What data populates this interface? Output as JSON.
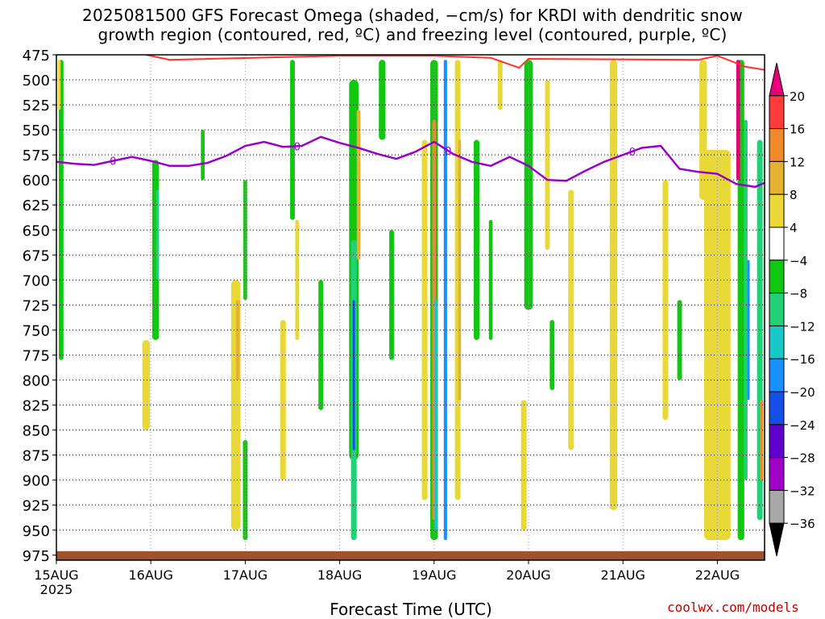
{
  "chart_data": {
    "type": "heatmap",
    "title_line1": "2025081500 GFS Forecast Omega (shaded, −cm/s) for KRDI with dendritic snow",
    "title_line2": "growth region (contoured, red, ºC) and freezing level (contoured, purple, ºC)",
    "xlabel": "Forecast Time (UTC)",
    "ylabel": "",
    "y_ticks": [
      475,
      500,
      525,
      550,
      575,
      600,
      625,
      650,
      675,
      700,
      725,
      750,
      775,
      800,
      825,
      850,
      875,
      900,
      925,
      950,
      975
    ],
    "ylim": [
      475,
      980
    ],
    "x_ticks": [
      "15AUG",
      "16AUG",
      "17AUG",
      "18AUG",
      "19AUG",
      "20AUG",
      "21AUG",
      "22AUG"
    ],
    "x_first_sub": "2025",
    "xlim_days": [
      0,
      7.5
    ],
    "colorbar": {
      "levels": [
        "20",
        "16",
        "12",
        "8",
        "4",
        "−4",
        "−8",
        "−12",
        "−16",
        "−20",
        "−24",
        "−28",
        "−32",
        "−36"
      ],
      "colors": [
        "#e8007a",
        "#ff3b3b",
        "#f08a28",
        "#e6b030",
        "#e8d838",
        "#ffffff",
        "#10c810",
        "#22d078",
        "#18c8c8",
        "#1890ff",
        "#1450e6",
        "#6000cc",
        "#a000c8",
        "#a8a8a8",
        "#000000"
      ]
    },
    "freezing_level_label": "0",
    "freezing_level": {
      "x": [
        0,
        0.2,
        0.4,
        0.6,
        0.8,
        1.0,
        1.2,
        1.4,
        1.6,
        1.8,
        2.0,
        2.2,
        2.4,
        2.6,
        2.8,
        3.0,
        3.2,
        3.4,
        3.6,
        3.8,
        4.0,
        4.2,
        4.4,
        4.6,
        4.8,
        5.0,
        5.2,
        5.4,
        5.6,
        5.8,
        6.0,
        6.2,
        6.4,
        6.6,
        6.8,
        7.0,
        7.2,
        7.4,
        7.5
      ],
      "p": [
        582,
        584,
        585,
        581,
        577,
        581,
        586,
        586,
        583,
        576,
        566,
        562,
        567,
        566,
        557,
        563,
        568,
        574,
        579,
        572,
        562,
        574,
        582,
        586,
        577,
        586,
        600,
        601,
        591,
        582,
        575,
        568,
        566,
        589,
        592,
        594,
        604,
        607,
        603
      ]
    },
    "dgz_contour_top": {
      "x": [
        0.95,
        1.2,
        3.0,
        4.0,
        4.6,
        4.9,
        5.0,
        6.8,
        7.0,
        7.3,
        7.5
      ],
      "p": [
        475,
        480,
        476,
        476,
        478,
        488,
        479,
        480,
        476,
        487,
        490
      ]
    },
    "omega_cells": [
      {
        "day": 0.05,
        "p0": 480,
        "p1": 780,
        "w": 0.05,
        "c": 6
      },
      {
        "day": 0.03,
        "p0": 480,
        "p1": 530,
        "w": 0.03,
        "c": 4
      },
      {
        "day": 1.05,
        "p0": 580,
        "p1": 760,
        "w": 0.07,
        "c": 6
      },
      {
        "day": 1.07,
        "p0": 610,
        "p1": 700,
        "w": 0.03,
        "c": 7
      },
      {
        "day": 0.95,
        "p0": 760,
        "p1": 850,
        "w": 0.08,
        "c": 4
      },
      {
        "day": 1.55,
        "p0": 550,
        "p1": 600,
        "w": 0.04,
        "c": 6
      },
      {
        "day": 1.9,
        "p0": 700,
        "p1": 950,
        "w": 0.1,
        "c": 4
      },
      {
        "day": 1.92,
        "p0": 720,
        "p1": 800,
        "w": 0.04,
        "c": 3
      },
      {
        "day": 2.0,
        "p0": 860,
        "p1": 960,
        "w": 0.05,
        "c": 6
      },
      {
        "day": 2.0,
        "p0": 600,
        "p1": 720,
        "w": 0.04,
        "c": 6
      },
      {
        "day": 2.4,
        "p0": 740,
        "p1": 900,
        "w": 0.06,
        "c": 4
      },
      {
        "day": 2.5,
        "p0": 480,
        "p1": 640,
        "w": 0.05,
        "c": 6
      },
      {
        "day": 2.55,
        "p0": 640,
        "p1": 760,
        "w": 0.04,
        "c": 4
      },
      {
        "day": 2.8,
        "p0": 700,
        "p1": 830,
        "w": 0.05,
        "c": 6
      },
      {
        "day": 3.15,
        "p0": 500,
        "p1": 880,
        "w": 0.1,
        "c": 6
      },
      {
        "day": 3.2,
        "p0": 530,
        "p1": 680,
        "w": 0.04,
        "c": 3
      },
      {
        "day": 3.15,
        "p0": 660,
        "p1": 960,
        "w": 0.06,
        "c": 7
      },
      {
        "day": 3.15,
        "p0": 720,
        "p1": 870,
        "w": 0.025,
        "c": 10
      },
      {
        "day": 3.45,
        "p0": 480,
        "p1": 560,
        "w": 0.07,
        "c": 6
      },
      {
        "day": 3.55,
        "p0": 650,
        "p1": 780,
        "w": 0.05,
        "c": 6
      },
      {
        "day": 3.9,
        "p0": 560,
        "p1": 920,
        "w": 0.06,
        "c": 4
      },
      {
        "day": 4.0,
        "p0": 480,
        "p1": 960,
        "w": 0.08,
        "c": 6
      },
      {
        "day": 4.0,
        "p0": 540,
        "p1": 940,
        "w": 0.04,
        "c": 2
      },
      {
        "day": 4.02,
        "p0": 720,
        "p1": 950,
        "w": 0.03,
        "c": 8
      },
      {
        "day": 4.12,
        "p0": 480,
        "p1": 960,
        "w": 0.035,
        "c": 9
      },
      {
        "day": 4.25,
        "p0": 480,
        "p1": 920,
        "w": 0.06,
        "c": 4
      },
      {
        "day": 4.27,
        "p0": 560,
        "p1": 820,
        "w": 0.03,
        "c": 3
      },
      {
        "day": 4.45,
        "p0": 560,
        "p1": 760,
        "w": 0.06,
        "c": 6
      },
      {
        "day": 4.6,
        "p0": 640,
        "p1": 760,
        "w": 0.04,
        "c": 6
      },
      {
        "day": 4.7,
        "p0": 480,
        "p1": 530,
        "w": 0.05,
        "c": 4
      },
      {
        "day": 4.95,
        "p0": 820,
        "p1": 950,
        "w": 0.06,
        "c": 4
      },
      {
        "day": 5.0,
        "p0": 480,
        "p1": 730,
        "w": 0.09,
        "c": 6
      },
      {
        "day": 5.2,
        "p0": 500,
        "p1": 670,
        "w": 0.05,
        "c": 4
      },
      {
        "day": 5.25,
        "p0": 740,
        "p1": 810,
        "w": 0.05,
        "c": 6
      },
      {
        "day": 5.45,
        "p0": 610,
        "p1": 870,
        "w": 0.06,
        "c": 4
      },
      {
        "day": 5.9,
        "p0": 480,
        "p1": 930,
        "w": 0.08,
        "c": 4
      },
      {
        "day": 6.45,
        "p0": 600,
        "p1": 840,
        "w": 0.06,
        "c": 4
      },
      {
        "day": 6.6,
        "p0": 720,
        "p1": 800,
        "w": 0.05,
        "c": 6
      },
      {
        "day": 7.0,
        "p0": 570,
        "p1": 960,
        "w": 0.28,
        "c": 4
      },
      {
        "day": 6.85,
        "p0": 480,
        "p1": 620,
        "w": 0.08,
        "c": 4
      },
      {
        "day": 7.25,
        "p0": 480,
        "p1": 960,
        "w": 0.07,
        "c": 6
      },
      {
        "day": 7.22,
        "p0": 480,
        "p1": 600,
        "w": 0.04,
        "c": 0
      },
      {
        "day": 7.3,
        "p0": 540,
        "p1": 900,
        "w": 0.04,
        "c": 7
      },
      {
        "day": 7.33,
        "p0": 680,
        "p1": 820,
        "w": 0.025,
        "c": 9
      },
      {
        "day": 7.45,
        "p0": 560,
        "p1": 940,
        "w": 0.06,
        "c": 7
      },
      {
        "day": 7.47,
        "p0": 820,
        "p1": 900,
        "w": 0.03,
        "c": 2
      }
    ]
  },
  "credit": "coolwx.com/models"
}
